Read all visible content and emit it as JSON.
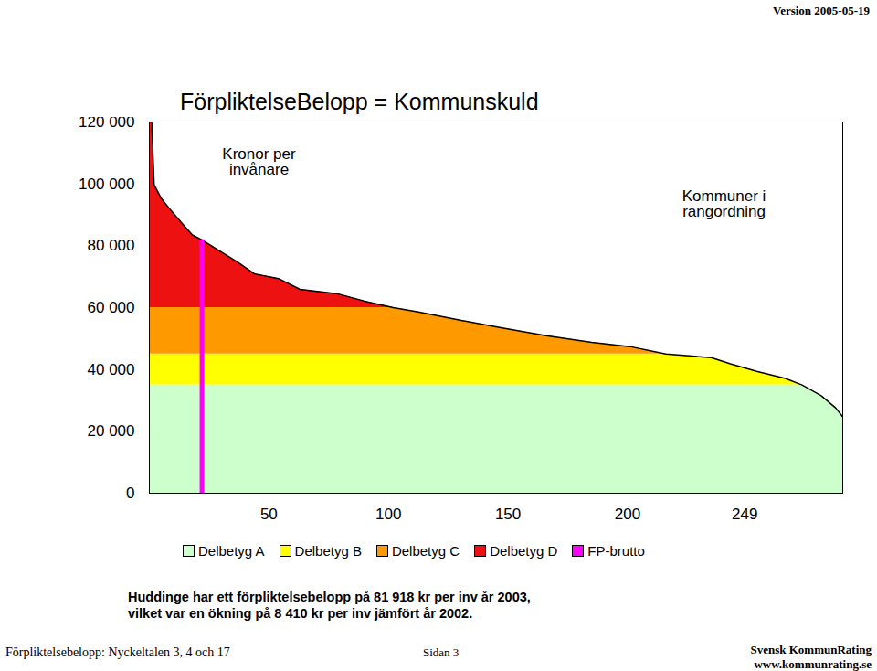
{
  "chart_data": {
    "type": "area",
    "title": "FörpliktelseBelopp = Kommunskuld",
    "annotations": [
      "Kronor per\ninvånare",
      "Kommuner i\nrangordning"
    ],
    "x": [
      1,
      2,
      5,
      8,
      14,
      18,
      22,
      29,
      37,
      44,
      54,
      63,
      79,
      90,
      102,
      113,
      128,
      147,
      166,
      185,
      201,
      216,
      235,
      243,
      254,
      266,
      273,
      281,
      287,
      290
    ],
    "values": [
      120000,
      99700,
      95300,
      92400,
      87000,
      83500,
      81900,
      78500,
      74700,
      70900,
      69400,
      65900,
      64400,
      62100,
      60000,
      58500,
      56200,
      53500,
      50900,
      48800,
      47400,
      45000,
      43800,
      41800,
      39400,
      37100,
      35000,
      31500,
      27600,
      24700
    ],
    "color": "#000000",
    "bands": [
      {
        "name": "Delbetyg A",
        "color": "#ccffcc",
        "from": 0,
        "to": 35000
      },
      {
        "name": "Delbetyg B",
        "color": "#ffff00",
        "from": 35000,
        "to": 45000
      },
      {
        "name": "Delbetyg C",
        "color": "#ff9900",
        "from": 45000,
        "to": 60000
      },
      {
        "name": "Delbetyg D",
        "color": "#ee1111",
        "from": 60000,
        "to": 120000
      }
    ],
    "highlight": {
      "name": "FP-brutto",
      "color": "#ff00ff",
      "x": 22,
      "value": 81918
    },
    "xlim": [
      0,
      290
    ],
    "xticks": [
      50,
      100,
      150,
      200,
      249
    ],
    "ylim": [
      0,
      120000
    ],
    "yticks": [
      0,
      {
        "value": 20000,
        "label": "20 000"
      },
      {
        "value": 40000,
        "label": "40 000"
      },
      {
        "value": 60000,
        "label": "60 000"
      },
      {
        "value": 80000,
        "label": "80 000"
      },
      {
        "value": 100000,
        "label": "100 000"
      },
      {
        "value": 120000,
        "label": "120 000"
      }
    ],
    "grid": false,
    "caption": "Huddinge har ett förpliktelsebelopp på 81 918 kr per inv år 2003,\nvilket var en ökning på 8 410 kr per inv jämfört år 2002.",
    "header": "Version 2005-05-19",
    "footer": {
      "left": "Förpliktelsebelopp: Nyckeltalen  3, 4 och 17",
      "middle": "Sidan 3",
      "right": [
        "Svensk KommunRating",
        "www.kommunrating.se"
      ]
    }
  }
}
